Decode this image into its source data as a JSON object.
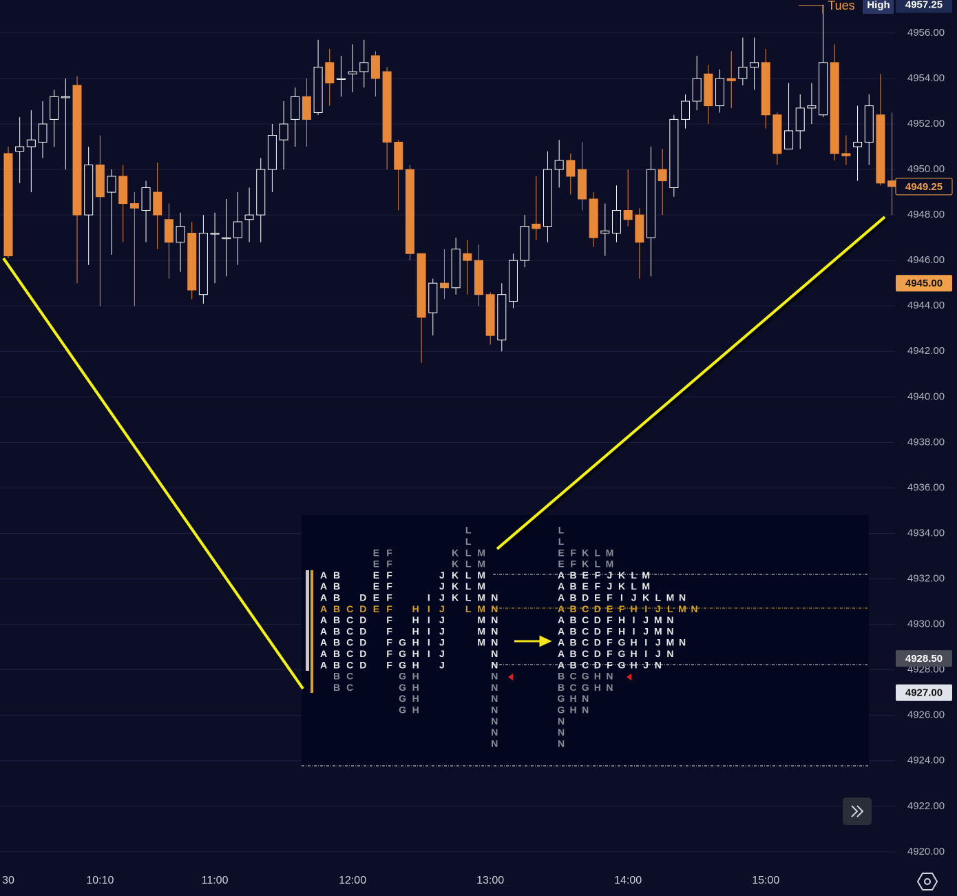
{
  "chart_data": {
    "type": "candlestick",
    "open": [
      4950.7,
      4950.8,
      4951.0,
      4951.2,
      4952.2,
      4953.2,
      4953.7,
      4948.0,
      4950.2,
      4949.0,
      4949.7,
      4948.5,
      4948.2,
      4949.0,
      4947.8,
      4946.8,
      4947.2,
      4944.5,
      4947.2,
      4947.0,
      4947.0,
      4947.8,
      4948.0,
      4950.0,
      4951.3,
      4952.2,
      4953.2,
      4952.5,
      4954.7,
      4954.0,
      4954.2,
      4954.3,
      4955.0,
      4954.3,
      4951.2,
      4950.0,
      4946.3,
      4943.7,
      4945.0,
      4944.8,
      4946.3,
      4946.0,
      4944.5,
      4942.5,
      4944.2,
      4946.0,
      4947.6,
      4947.5,
      4950.0,
      4950.4,
      4950.0,
      4948.7,
      4947.2,
      4947.2,
      4948.2,
      4948.0,
      4947.0,
      4950.0,
      4949.2,
      4952.2,
      4953.0,
      4954.2,
      4952.8,
      4954.0,
      4954.0,
      4954.5,
      4954.7,
      4952.4,
      4950.9,
      4951.7,
      4952.7,
      4952.4,
      4954.7,
      4950.7,
      4951.0,
      4951.2,
      4952.4,
      4949.5
    ],
    "high": [
      4951.0,
      4952.3,
      4952.6,
      4953.0,
      4953.5,
      4954.0,
      4954.1,
      4951.0,
      4951.5,
      4950.0,
      4950.2,
      4949.0,
      4949.5,
      4950.3,
      4948.5,
      4948.1,
      4947.7,
      4948.0,
      4948.1,
      4948.7,
      4949.0,
      4949.2,
      4950.5,
      4952.0,
      4953.0,
      4953.6,
      4954.0,
      4955.7,
      4955.3,
      4955.0,
      4955.5,
      4955.7,
      4955.2,
      4954.5,
      4951.3,
      4950.2,
      4946.3,
      4945.2,
      4946.5,
      4947.0,
      4946.9,
      4946.7,
      4944.6,
      4945.0,
      4946.3,
      4948.0,
      4949.7,
      4950.8,
      4951.3,
      4950.7,
      4951.2,
      4949.0,
      4948.5,
      4949.3,
      4950.0,
      4948.3,
      4951.0,
      4950.9,
      4952.4,
      4953.3,
      4955.0,
      4954.6,
      4954.4,
      4955.2,
      4955.8,
      4955.8,
      4955.3,
      4952.5,
      4953.8,
      4953.3,
      4953.8,
      4957.25,
      4955.5,
      4951.5,
      4952.8,
      4953.3,
      4954.2,
      4952.5
    ],
    "low": [
      4946.1,
      4949.4,
      4949.0,
      4950.5,
      4951.0,
      4950.0,
      4945.0,
      4945.8,
      4944.0,
      4946.25,
      4946.8,
      4944.0,
      4946.8,
      4946.5,
      4945.2,
      4945.5,
      4944.3,
      4944.1,
      4945.0,
      4945.3,
      4945.8,
      4946.8,
      4946.8,
      4949.0,
      4950.0,
      4951.0,
      4951.0,
      4952.4,
      4952.8,
      4953.2,
      4953.4,
      4953.6,
      4953.2,
      4950.0,
      4948.2,
      4946.0,
      4941.5,
      4942.7,
      4944.3,
      4944.5,
      4944.5,
      4944.0,
      4942.3,
      4942.0,
      4943.9,
      4945.7,
      4946.9,
      4946.8,
      4949.2,
      4948.9,
      4948.2,
      4946.6,
      4946.2,
      4946.8,
      4947.5,
      4945.2,
      4945.3,
      4948.0,
      4948.8,
      4951.8,
      4952.6,
      4952.0,
      4952.5,
      4952.7,
      4953.7,
      4953.5,
      4951.8,
      4950.2,
      4950.9,
      4950.9,
      4952.0,
      4952.3,
      4950.4,
      4950.2,
      4949.5,
      4950.2,
      4949.3,
      4948.0
    ],
    "close": [
      4946.2,
      4951.0,
      4951.3,
      4952.0,
      4953.2,
      4953.2,
      4948.0,
      4950.2,
      4948.8,
      4949.7,
      4948.5,
      4948.3,
      4949.2,
      4948.0,
      4946.8,
      4947.5,
      4944.7,
      4947.2,
      4947.2,
      4947.0,
      4947.7,
      4948.0,
      4950.0,
      4951.5,
      4952.0,
      4953.2,
      4952.2,
      4954.5,
      4953.8,
      4954.0,
      4954.3,
      4954.7,
      4954.0,
      4951.2,
      4950.0,
      4946.3,
      4943.5,
      4945.0,
      4944.8,
      4946.5,
      4946.0,
      4944.5,
      4942.7,
      4944.5,
      4946.0,
      4947.5,
      4947.4,
      4950.0,
      4950.4,
      4949.7,
      4948.7,
      4947.0,
      4947.3,
      4948.2,
      4947.8,
      4946.8,
      4950.0,
      4949.5,
      4952.2,
      4953.0,
      4954.0,
      4952.8,
      4954.0,
      4953.9,
      4954.5,
      4954.7,
      4952.4,
      4950.7,
      4951.7,
      4952.7,
      4952.8,
      4954.7,
      4950.7,
      4950.6,
      4951.2,
      4952.8,
      4949.4,
      4949.25
    ],
    "up_color": "#ffffff",
    "down_color": "#e8893a",
    "ylim": [
      4919.3,
      4957.45
    ],
    "yticks": [
      {
        "value": 4956,
        "label": "4956.00"
      },
      {
        "value": 4954,
        "label": "4954.00"
      },
      {
        "value": 4952,
        "label": "4952.00"
      },
      {
        "value": 4950,
        "label": "4950.00"
      },
      {
        "value": 4948,
        "label": "4948.00"
      },
      {
        "value": 4946,
        "label": "4946.00"
      },
      {
        "value": 4944,
        "label": "4944.00"
      },
      {
        "value": 4942,
        "label": "4942.00"
      },
      {
        "value": 4940,
        "label": "4940.00"
      },
      {
        "value": 4938,
        "label": "4938.00"
      },
      {
        "value": 4936,
        "label": "4936.00"
      },
      {
        "value": 4934,
        "label": "4934.00"
      },
      {
        "value": 4932,
        "label": "4932.00"
      },
      {
        "value": 4930,
        "label": "4930.00"
      },
      {
        "value": 4928,
        "label": "4928.00"
      },
      {
        "value": 4926,
        "label": "4926.00"
      },
      {
        "value": 4924,
        "label": "4924.00"
      },
      {
        "value": 4922,
        "label": "4922.00"
      },
      {
        "value": 4920,
        "label": "4920.00"
      }
    ],
    "xticks": [
      {
        "value": 0,
        "label": "30"
      },
      {
        "value": 8,
        "label": "10:10"
      },
      {
        "value": 18,
        "label": "11:00"
      },
      {
        "value": 30,
        "label": "12:00"
      },
      {
        "value": 42,
        "label": "13:00"
      },
      {
        "value": 54,
        "label": "14:00"
      },
      {
        "value": 66,
        "label": "15:00"
      }
    ],
    "grid": true,
    "annotations": [
      "Tues",
      "High"
    ],
    "price_labels": [
      {
        "value": 4957.25,
        "label": "4957.25",
        "color": "#1e2a52",
        "text_color": "#ffffff"
      },
      {
        "value": 4949.25,
        "label": "4949.25",
        "color": "#0b0e26",
        "text_color": "#f0a04b"
      },
      {
        "value": 4945,
        "label": "4945.00",
        "color": "#f0a04b",
        "text_color": "#111111"
      },
      {
        "value": 4928.5,
        "label": "4928.50",
        "color": "#4a4c58",
        "text_color": "#ffffff"
      },
      {
        "value": 4927,
        "label": "4927.00",
        "color": "#e0e3eb",
        "text_color": "#111111"
      }
    ],
    "market_profile": {
      "rows": [
        [
          "L"
        ],
        [
          "L"
        ],
        [
          "E",
          "F",
          "K",
          "L",
          "M"
        ],
        [
          "E",
          "F",
          "K",
          "L",
          "M"
        ],
        [
          "A",
          "B",
          "E",
          "F",
          "J",
          "K",
          "L",
          "M"
        ],
        [
          "A",
          "B",
          "E",
          "F",
          "J",
          "K",
          "L",
          "M"
        ],
        [
          "A",
          "B",
          "D",
          "E",
          "F",
          "I",
          "J",
          "K",
          "L",
          "M",
          "N"
        ],
        [
          "A",
          "B",
          "C",
          "D",
          "E",
          "F",
          "H",
          "I",
          "J",
          "L",
          "M",
          "N"
        ],
        [
          "A",
          "B",
          "C",
          "D",
          "F",
          "H",
          "I",
          "J",
          "M",
          "N"
        ],
        [
          "A",
          "B",
          "C",
          "D",
          "F",
          "H",
          "I",
          "J",
          "M",
          "N"
        ],
        [
          "A",
          "B",
          "C",
          "D",
          "F",
          "G",
          "H",
          "I",
          "J",
          "M",
          "N"
        ],
        [
          "A",
          "B",
          "C",
          "D",
          "F",
          "G",
          "H",
          "I",
          "J",
          "N"
        ],
        [
          "A",
          "B",
          "C",
          "D",
          "F",
          "G",
          "H",
          "J",
          "N"
        ],
        [
          "B",
          "C",
          "G",
          "H",
          "N"
        ],
        [
          "B",
          "C",
          "G",
          "H",
          "N"
        ],
        [
          "G",
          "H",
          "N"
        ],
        [
          "G",
          "H",
          "N"
        ],
        [
          "N"
        ],
        [
          "N"
        ],
        [
          "N"
        ]
      ],
      "poc_row": 7,
      "value_area": [
        4,
        12
      ],
      "poc_color": "#d9a21b",
      "value_area_color": "#e8e8e8",
      "outside_color": "#8a8d96"
    }
  }
}
